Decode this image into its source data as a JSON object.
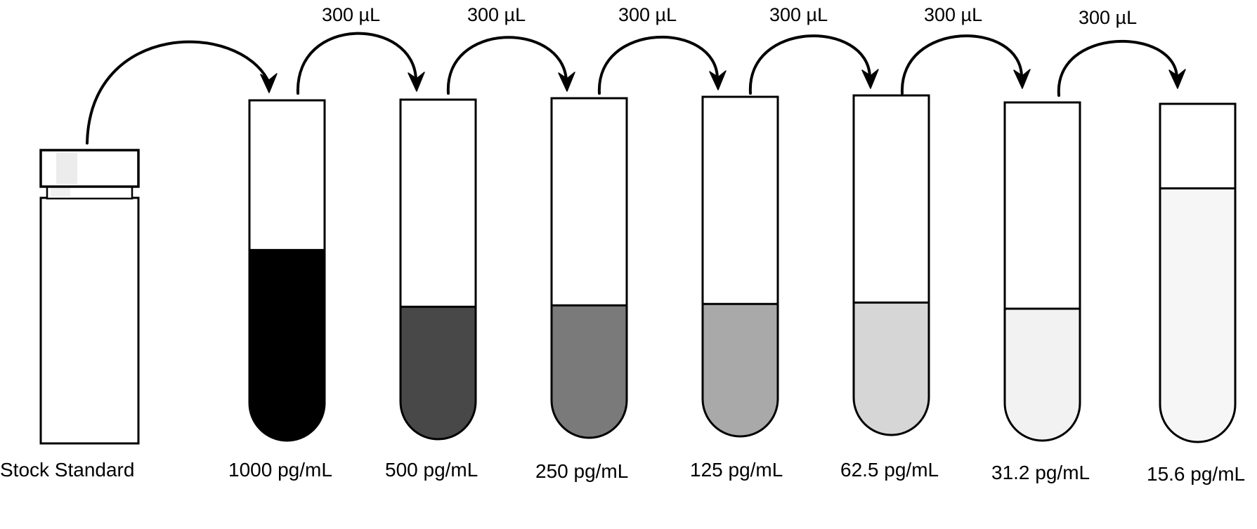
{
  "stock": {
    "label": "Stock Standard"
  },
  "transfer_volume": "300  µL",
  "tubes": [
    {
      "label": "1000 pg/mL",
      "fill_color": "#000000",
      "fill_level": 0.56
    },
    {
      "label": "500 pg/mL",
      "fill_color": "#484848",
      "fill_level": 0.39
    },
    {
      "label": "250 pg/mL",
      "fill_color": "#7a7a7a",
      "fill_level": 0.39
    },
    {
      "label": "125 pg/mL",
      "fill_color": "#a9a9a9",
      "fill_level": 0.39
    },
    {
      "label": "62.5 pg/mL",
      "fill_color": "#d6d6d6",
      "fill_level": 0.39
    },
    {
      "label": "31.2 pg/mL",
      "fill_color": "#f2f2f2",
      "fill_level": 0.39
    },
    {
      "label": "15.6 pg/mL",
      "fill_color": "#f6f6f6",
      "fill_level": 0.75
    }
  ],
  "transfers": [
    {
      "label": "300  µL"
    },
    {
      "label": "300  µL"
    },
    {
      "label": "300  µL"
    },
    {
      "label": "300  µL"
    },
    {
      "label": "300  µL"
    },
    {
      "label": "300  µL"
    }
  ]
}
